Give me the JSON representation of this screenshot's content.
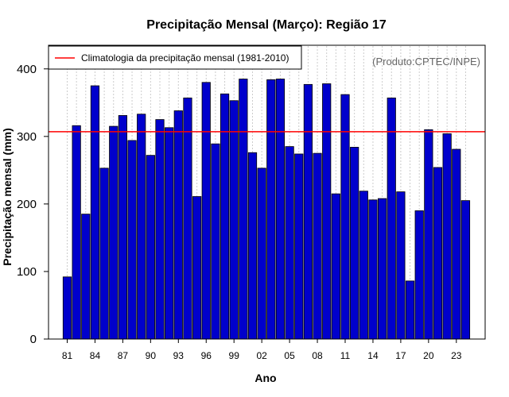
{
  "chart_data": {
    "type": "bar",
    "title": "Precipitação Mensal (Março): Região 17",
    "xlabel": "Ano",
    "ylabel": "Precipitação mensal (mm)",
    "ylim": [
      0,
      435
    ],
    "yticks": [
      0,
      100,
      200,
      300,
      400
    ],
    "categories": [
      "81",
      "82",
      "83",
      "84",
      "85",
      "86",
      "87",
      "88",
      "89",
      "90",
      "91",
      "92",
      "93",
      "94",
      "95",
      "96",
      "97",
      "98",
      "99",
      "00",
      "01",
      "02",
      "03",
      "04",
      "05",
      "06",
      "07",
      "08",
      "09",
      "10",
      "11",
      "12",
      "13",
      "14",
      "15",
      "16",
      "17",
      "18",
      "19",
      "20",
      "21",
      "22",
      "23",
      "24"
    ],
    "xtick_labels": [
      "81",
      "84",
      "87",
      "90",
      "93",
      "96",
      "99",
      "02",
      "05",
      "08",
      "11",
      "14",
      "17",
      "20",
      "23"
    ],
    "values": [
      92,
      316,
      185,
      375,
      253,
      315,
      331,
      294,
      333,
      272,
      325,
      313,
      338,
      357,
      211,
      380,
      289,
      363,
      353,
      385,
      276,
      253,
      384,
      385,
      285,
      274,
      377,
      275,
      378,
      215,
      362,
      284,
      219,
      206,
      208,
      357,
      218,
      86,
      190,
      310,
      254,
      304,
      281,
      205
    ],
    "bar_color": "#0000cc",
    "reference_line": {
      "value": 307,
      "label": "Climatologia da precipitação mensal (1981-2010)",
      "color": "#ff0000"
    },
    "legend_position": "top-left",
    "grid": "vertical-dotted",
    "annotation": "(Produto:CPTEC/INPE)"
  }
}
